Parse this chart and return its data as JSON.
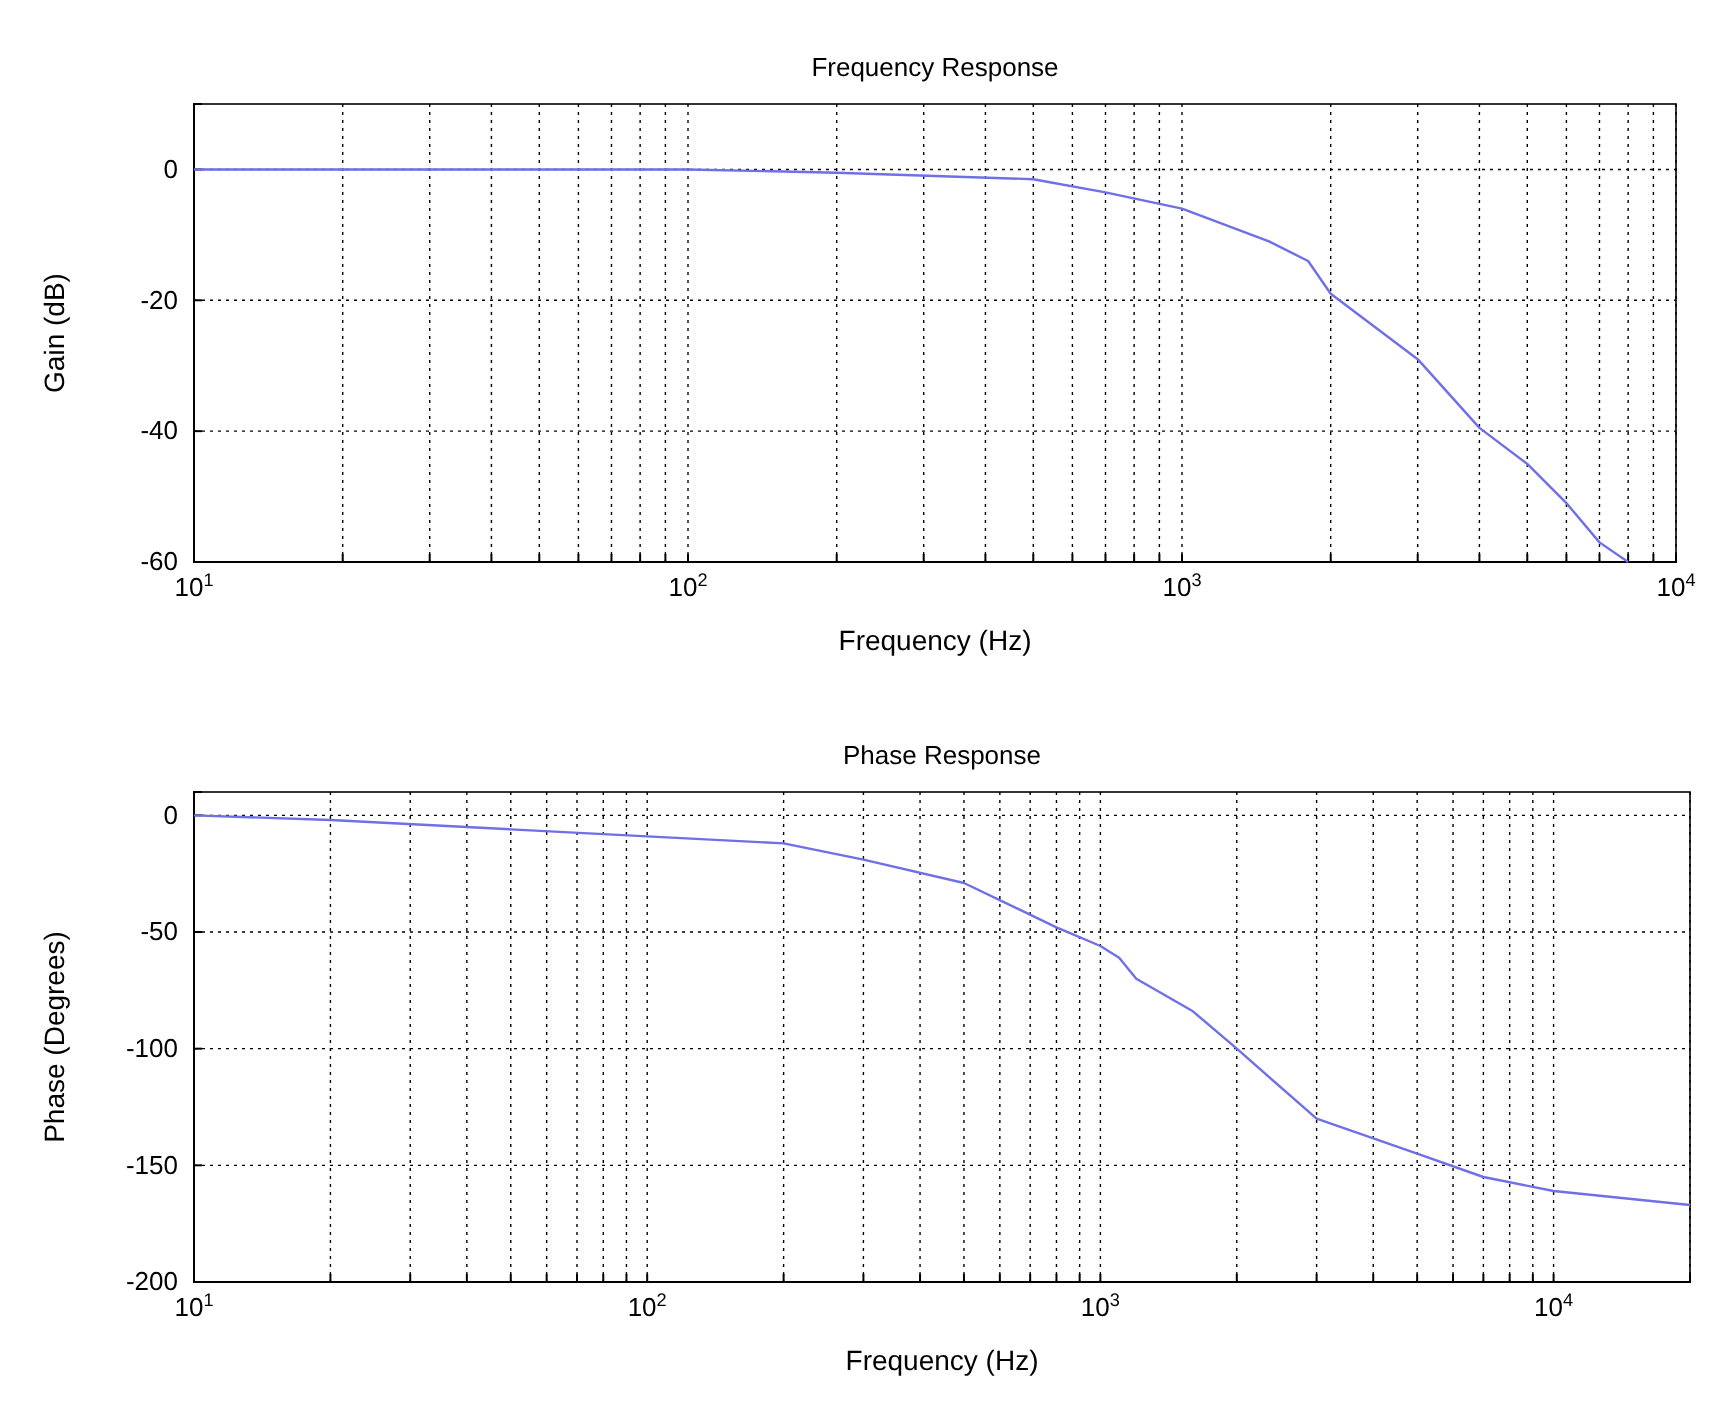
{
  "chart_data": [
    {
      "type": "line",
      "title": "Frequency Response",
      "xlabel": "Frequency (Hz)",
      "ylabel": "Gain (dB)",
      "log": "x",
      "grid": true,
      "line_style": "solid",
      "xlim": [
        10,
        10000
      ],
      "ylim": [
        -60,
        10
      ],
      "xticks": [
        {
          "value": 10,
          "label": "10$^{1}$"
        },
        {
          "value": 20,
          "label": null
        },
        {
          "value": 30,
          "label": null
        },
        {
          "value": 40,
          "label": null
        },
        {
          "value": 50,
          "label": null
        },
        {
          "value": 60,
          "label": null
        },
        {
          "value": 70,
          "label": null
        },
        {
          "value": 80,
          "label": null
        },
        {
          "value": 90,
          "label": null
        },
        {
          "value": 100,
          "label": "10$^{2}$"
        },
        {
          "value": 200,
          "label": null
        },
        {
          "value": 300,
          "label": null
        },
        {
          "value": 400,
          "label": null
        },
        {
          "value": 500,
          "label": null
        },
        {
          "value": 600,
          "label": null
        },
        {
          "value": 700,
          "label": null
        },
        {
          "value": 800,
          "label": null
        },
        {
          "value": 900,
          "label": null
        },
        {
          "value": 1000,
          "label": "10$^{3}$"
        },
        {
          "value": 2000,
          "label": null
        },
        {
          "value": 3000,
          "label": null
        },
        {
          "value": 4000,
          "label": null
        },
        {
          "value": 5000,
          "label": null
        },
        {
          "value": 6000,
          "label": null
        },
        {
          "value": 7000,
          "label": null
        },
        {
          "value": 8000,
          "label": null
        },
        {
          "value": 9000,
          "label": null
        },
        {
          "value": 10000,
          "label": "10$^{4}$"
        }
      ],
      "yticks": [
        -60,
        -40,
        -20,
        0
      ],
      "series": [
        {
          "color": "#6f6fe8",
          "x": [
            10,
            100,
            200,
            500,
            700,
            1000,
            1500,
            1800,
            2000,
            3000,
            4000,
            5000,
            6000,
            7000,
            8000
          ],
          "values": [
            0,
            0,
            -0.5,
            -1.5,
            -3.5,
            -6,
            -11,
            -14,
            -19,
            -29,
            -39.5,
            -45,
            -51,
            -57,
            -60
          ]
        }
      ]
    },
    {
      "type": "line",
      "title": "Phase Response",
      "xlabel": "Frequency (Hz)",
      "ylabel": "Phase (Degrees)",
      "log": "x",
      "grid": true,
      "line_style": "solid",
      "xlim": [
        10,
        20000
      ],
      "ylim": [
        -200,
        10
      ],
      "xticks": [
        {
          "value": 10,
          "label": "10$^{1}$"
        },
        {
          "value": 20,
          "label": null
        },
        {
          "value": 30,
          "label": null
        },
        {
          "value": 40,
          "label": null
        },
        {
          "value": 50,
          "label": null
        },
        {
          "value": 60,
          "label": null
        },
        {
          "value": 70,
          "label": null
        },
        {
          "value": 80,
          "label": null
        },
        {
          "value": 90,
          "label": null
        },
        {
          "value": 100,
          "label": "10$^{2}$"
        },
        {
          "value": 200,
          "label": null
        },
        {
          "value": 300,
          "label": null
        },
        {
          "value": 400,
          "label": null
        },
        {
          "value": 500,
          "label": null
        },
        {
          "value": 600,
          "label": null
        },
        {
          "value": 700,
          "label": null
        },
        {
          "value": 800,
          "label": null
        },
        {
          "value": 900,
          "label": null
        },
        {
          "value": 1000,
          "label": "10$^{3}$"
        },
        {
          "value": 2000,
          "label": null
        },
        {
          "value": 3000,
          "label": null
        },
        {
          "value": 4000,
          "label": null
        },
        {
          "value": 5000,
          "label": null
        },
        {
          "value": 6000,
          "label": null
        },
        {
          "value": 7000,
          "label": null
        },
        {
          "value": 8000,
          "label": null
        },
        {
          "value": 9000,
          "label": null
        },
        {
          "value": 10000,
          "label": "10$^{4}$"
        },
        {
          "value": 20000,
          "label": null
        }
      ],
      "yticks": [
        -200,
        -150,
        -100,
        -50,
        0
      ],
      "series": [
        {
          "color": "#6f6fe8",
          "x": [
            10,
            20,
            50,
            100,
            200,
            300,
            500,
            800,
            1000,
            1100,
            1200,
            1600,
            2000,
            3000,
            5000,
            7000,
            10000,
            20000
          ],
          "values": [
            0,
            -2,
            -6,
            -9,
            -12,
            -19,
            -29,
            -48,
            -56,
            -61,
            -70,
            -84,
            -100,
            -130,
            -145,
            -155,
            -161,
            -167
          ]
        }
      ]
    }
  ]
}
